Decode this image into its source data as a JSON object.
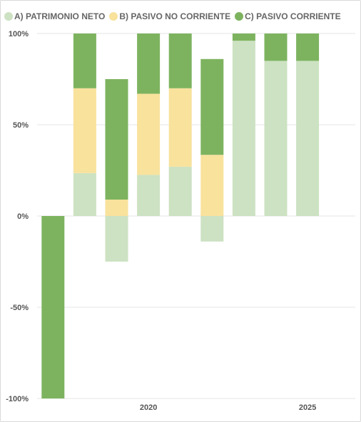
{
  "chart_data": {
    "type": "bar",
    "stacked": true,
    "title": "",
    "xlabel": "",
    "ylabel": "",
    "ylim": [
      -100,
      100
    ],
    "y_ticks": [
      100,
      50,
      0,
      -50,
      -100
    ],
    "y_tick_labels": [
      "100%",
      "50%",
      "0%",
      "-50%",
      "-100%"
    ],
    "x_ticks": [
      {
        "year": 2020,
        "label": "2020"
      },
      {
        "year": 2025,
        "label": "2025"
      }
    ],
    "x_range": [
      2016.5,
      2026.5
    ],
    "grid": true,
    "legend_position": "top-left",
    "categories": [
      2017,
      2018,
      2019,
      2020,
      2021,
      2022,
      2023,
      2024,
      2025
    ],
    "series": [
      {
        "name": "A) PATRIMONIO NETO",
        "color": "#cce2c2",
        "values": [
          0,
          23.5,
          -25,
          22.5,
          27,
          -14,
          96,
          85,
          85
        ]
      },
      {
        "name": "B) PASIVO NO CORRIENTE",
        "color": "#f8e29c",
        "values": [
          0,
          46.5,
          9,
          44.5,
          43,
          33.5,
          0,
          0,
          0
        ]
      },
      {
        "name": "C) PASIVO CORRIENTE",
        "color": "#7db35f",
        "values": [
          -100,
          30,
          66,
          33,
          30,
          52.5,
          4,
          15,
          15
        ]
      }
    ]
  }
}
